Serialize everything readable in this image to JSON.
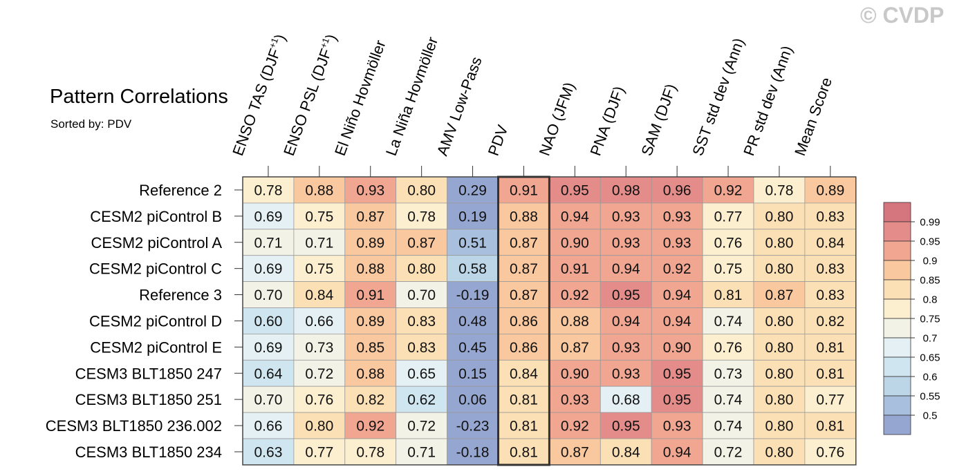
{
  "watermark": "© CVDP",
  "title": "Pattern Correlations",
  "subtitle_prefix": "Sorted by:",
  "subtitle_value": "PDV",
  "chart_data": {
    "type": "heatmap",
    "title": "Pattern Correlations",
    "sorted_by": "PDV",
    "highlighted_column": "PDV",
    "columns": [
      {
        "main": "ENSO TAS (DJF",
        "sup": "+1",
        "tail": ")"
      },
      {
        "main": "ENSO PSL (DJF",
        "sup": "+1",
        "tail": ")"
      },
      {
        "main": "El Niño Hovmöller"
      },
      {
        "main": "La Niña Hovmöller"
      },
      {
        "main": "AMV Low-Pass"
      },
      {
        "main": "PDV"
      },
      {
        "main": "NAO (JFM)"
      },
      {
        "main": "PNA (DJF)"
      },
      {
        "main": "SAM (DJF)"
      },
      {
        "main": "SST std dev (Ann)"
      },
      {
        "main": "PR std dev (Ann)"
      },
      {
        "main": "Mean Score"
      }
    ],
    "rows": [
      "Reference 2",
      "CESM2 piControl B",
      "CESM2 piControl A",
      "CESM2 piControl C",
      "Reference 3",
      "CESM2 piControl D",
      "CESM2 piControl E",
      "CESM3 BLT1850 247",
      "CESM3 BLT1850 251",
      "CESM3 BLT1850 236.002",
      "CESM3 BLT1850 234"
    ],
    "values": [
      [
        "0.78",
        "0.88",
        "0.93",
        "0.80",
        "0.29",
        "0.91",
        "0.95",
        "0.98",
        "0.96",
        "0.92",
        "0.78",
        "0.89"
      ],
      [
        "0.69",
        "0.75",
        "0.87",
        "0.78",
        "0.19",
        "0.88",
        "0.94",
        "0.93",
        "0.93",
        "0.77",
        "0.80",
        "0.83"
      ],
      [
        "0.71",
        "0.71",
        "0.89",
        "0.87",
        "0.51",
        "0.87",
        "0.90",
        "0.93",
        "0.93",
        "0.76",
        "0.80",
        "0.84"
      ],
      [
        "0.69",
        "0.75",
        "0.88",
        "0.80",
        "0.58",
        "0.87",
        "0.91",
        "0.94",
        "0.92",
        "0.75",
        "0.80",
        "0.83"
      ],
      [
        "0.70",
        "0.84",
        "0.91",
        "0.70",
        "-0.19",
        "0.87",
        "0.92",
        "0.95",
        "0.94",
        "0.81",
        "0.87",
        "0.83"
      ],
      [
        "0.60",
        "0.66",
        "0.89",
        "0.83",
        "0.48",
        "0.86",
        "0.88",
        "0.94",
        "0.94",
        "0.74",
        "0.80",
        "0.82"
      ],
      [
        "0.69",
        "0.73",
        "0.85",
        "0.83",
        "0.45",
        "0.86",
        "0.87",
        "0.93",
        "0.90",
        "0.76",
        "0.80",
        "0.81"
      ],
      [
        "0.64",
        "0.72",
        "0.88",
        "0.65",
        "0.15",
        "0.84",
        "0.90",
        "0.93",
        "0.95",
        "0.73",
        "0.80",
        "0.81"
      ],
      [
        "0.70",
        "0.76",
        "0.82",
        "0.62",
        "0.06",
        "0.81",
        "0.93",
        "0.68",
        "0.95",
        "0.74",
        "0.80",
        "0.77"
      ],
      [
        "0.66",
        "0.80",
        "0.92",
        "0.72",
        "-0.23",
        "0.81",
        "0.92",
        "0.95",
        "0.93",
        "0.74",
        "0.80",
        "0.81"
      ],
      [
        "0.63",
        "0.77",
        "0.78",
        "0.71",
        "-0.18",
        "0.81",
        "0.87",
        "0.84",
        "0.94",
        "0.72",
        "0.80",
        "0.76"
      ]
    ],
    "colorbar": {
      "labels": [
        "0.99",
        "0.95",
        "0.9",
        "0.85",
        "0.8",
        "0.75",
        "0.7",
        "0.65",
        "0.6",
        "0.55",
        "0.5"
      ],
      "bounds": [
        0.5,
        0.55,
        0.6,
        0.65,
        0.7,
        0.75,
        0.8,
        0.85,
        0.9,
        0.95,
        0.99
      ],
      "colors": [
        "#95a6d1",
        "#a8bfde",
        "#bcd6e7",
        "#cfe5ef",
        "#e4f0f4",
        "#f3f2e6",
        "#fcefcf",
        "#fce0b5",
        "#f9c89f",
        "#f1a691",
        "#e48c8a",
        "#d5767f"
      ]
    }
  }
}
